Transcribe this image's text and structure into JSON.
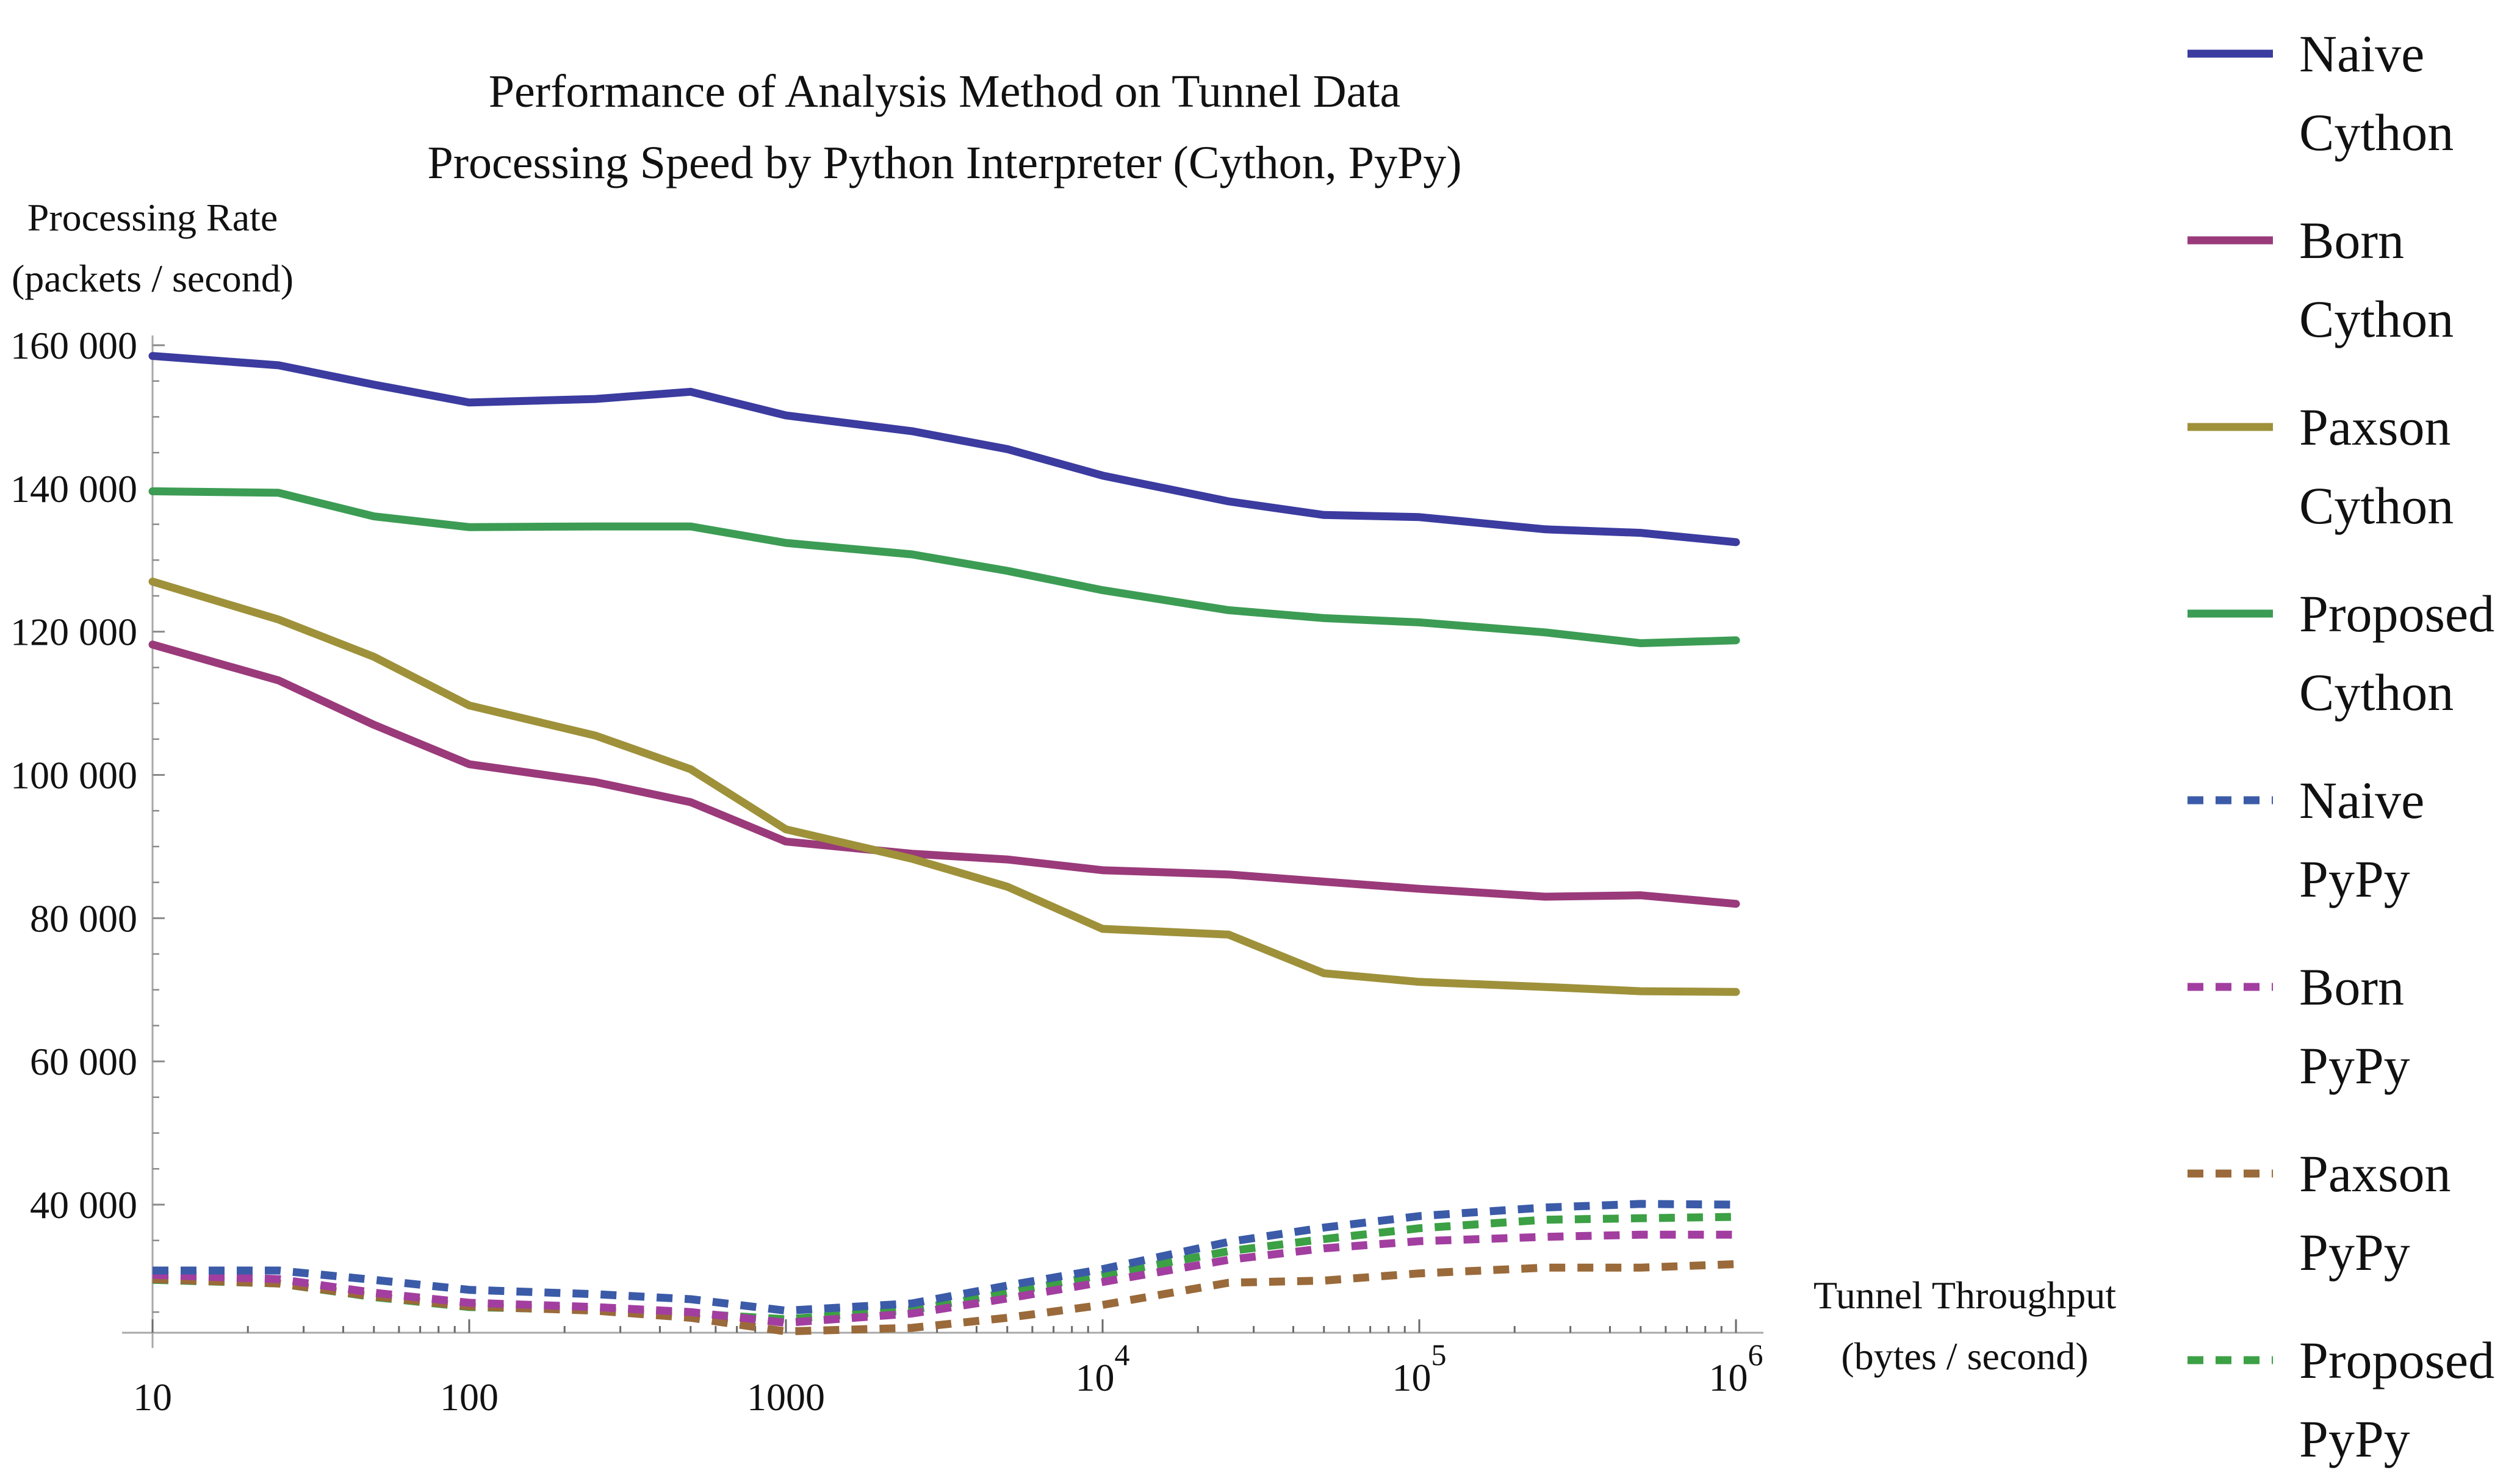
{
  "chart_data": {
    "type": "line",
    "title": "Performance of Analysis Method on Tunnel Data",
    "subtitle": "Processing Speed by Python Interpreter (Cython, PyPy)",
    "ylabel": [
      "Processing Rate",
      "(packets / second)"
    ],
    "xlabel": [
      "Tunnel Throughput",
      "(bytes / second)"
    ],
    "xscale": "log",
    "xlim": [
      10,
      1000000
    ],
    "ylim": [
      22000,
      162000
    ],
    "grid": false,
    "legend_position": "right",
    "y_ticks": [
      {
        "value": 40000,
        "label": "40 000"
      },
      {
        "value": 60000,
        "label": "60 000"
      },
      {
        "value": 80000,
        "label": "80 000"
      },
      {
        "value": 100000,
        "label": "100 000"
      },
      {
        "value": 120000,
        "label": "120 000"
      },
      {
        "value": 140000,
        "label": "140 000"
      },
      {
        "value": 160000,
        "label": "160 000"
      }
    ],
    "x_ticks": [
      {
        "value": 10,
        "label": "10"
      },
      {
        "value": 100,
        "label": "100"
      },
      {
        "value": 1000,
        "label": "1000"
      },
      {
        "value": 10000,
        "label": "10",
        "exp": "4"
      },
      {
        "value": 100000,
        "label": "10",
        "exp": "5"
      },
      {
        "value": 1000000,
        "label": "10",
        "exp": "6"
      }
    ],
    "x": [
      10,
      25,
      50,
      100,
      250,
      500,
      1000,
      2500,
      5000,
      10000,
      25000,
      50000,
      100000,
      250000,
      500000,
      1000000
    ],
    "series": [
      {
        "name": [
          "Naive",
          "Cython"
        ],
        "color": "#3b3ba0",
        "dash": "solid",
        "values": [
          158500,
          157200,
          154500,
          152000,
          152500,
          153500,
          150200,
          148000,
          145500,
          141800,
          138200,
          136300,
          136000,
          134300,
          133800,
          132500
        ]
      },
      {
        "name": [
          "Born",
          "Cython"
        ],
        "color": "#9a3a7a",
        "dash": "solid",
        "values": [
          118200,
          113200,
          107000,
          101500,
          99000,
          96200,
          90700,
          89000,
          88200,
          86700,
          86100,
          85100,
          84100,
          83000,
          83200,
          82000
        ]
      },
      {
        "name": [
          "Paxson",
          "Cython"
        ],
        "color": "#9e913a",
        "dash": "solid",
        "values": [
          127000,
          121700,
          116500,
          109700,
          105500,
          100800,
          92400,
          88300,
          84400,
          78500,
          77700,
          72300,
          71100,
          70400,
          69800,
          69700
        ]
      },
      {
        "name": [
          "Proposed",
          "Cython"
        ],
        "color": "#3c9c54",
        "dash": "solid",
        "values": [
          139600,
          139400,
          136100,
          134600,
          134700,
          134700,
          132400,
          130800,
          128500,
          125800,
          123000,
          121900,
          121300,
          119900,
          118400,
          118800
        ]
      },
      {
        "name": [
          "Naive",
          "PyPy"
        ],
        "color": "#3b5ba8",
        "dash": "dashed",
        "values": [
          30800,
          30800,
          29500,
          28100,
          27500,
          26800,
          25200,
          26200,
          28700,
          31000,
          34800,
          36800,
          38400,
          39600,
          40100,
          40000
        ]
      },
      {
        "name": [
          "Born",
          "PyPy"
        ],
        "color": "#a23ea0",
        "dash": "dashed",
        "values": [
          30200,
          29600,
          27700,
          26300,
          25700,
          25000,
          23500,
          24800,
          26900,
          29200,
          32300,
          33900,
          34900,
          35500,
          35800,
          35800
        ]
      },
      {
        "name": [
          "Paxson",
          "PyPy"
        ],
        "color": "#9a6a3a",
        "dash": "dashed",
        "values": [
          29600,
          29000,
          27200,
          25800,
          25200,
          24200,
          22300,
          22800,
          24200,
          26000,
          29100,
          29400,
          30400,
          31200,
          31200,
          31700
        ]
      },
      {
        "name": [
          "Proposed",
          "PyPy"
        ],
        "color": "#3ca044",
        "dash": "dashed",
        "values": [
          29500,
          29000,
          27100,
          25700,
          25300,
          24800,
          24000,
          25300,
          27700,
          30200,
          33500,
          35200,
          36700,
          37900,
          38100,
          38300
        ]
      }
    ]
  }
}
